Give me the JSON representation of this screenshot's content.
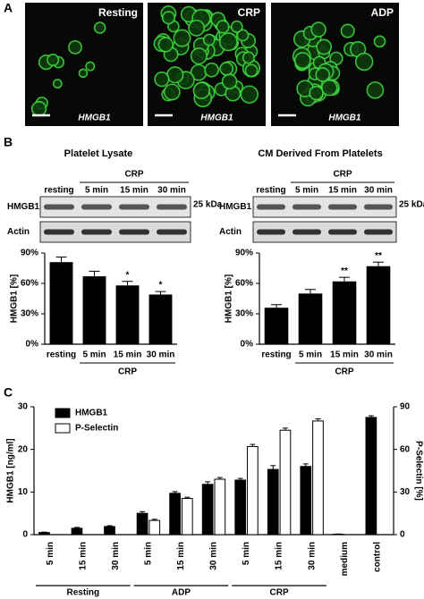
{
  "panel_labels": [
    "A",
    "B",
    "C"
  ],
  "panel_a": {
    "images": [
      {
        "label": "Resting",
        "stain": "HMGB1"
      },
      {
        "label": "CRP",
        "stain": "HMGB1"
      },
      {
        "label": "ADP",
        "stain": "HMGB1"
      }
    ]
  },
  "blots": [
    {
      "lanes": [
        "resting",
        "5 min",
        "15 min",
        "30 min"
      ],
      "group": "CRP",
      "rows": [
        "HMGB1",
        "Actin"
      ],
      "marker": "25 kDa"
    },
    {
      "lanes": [
        "resting",
        "5 min",
        "15 min",
        "30 min"
      ],
      "group": "CRP",
      "rows": [
        "HMGB1",
        "Actin"
      ],
      "marker": "25 kDa"
    }
  ],
  "chart_data": [
    {
      "type": "bar",
      "title": "Platelet Lysate",
      "ylabel": "HMGB1 [%]",
      "categories": [
        "resting",
        "5 min",
        "15 min",
        "30 min"
      ],
      "group_label": "CRP",
      "values": [
        81,
        67,
        58,
        49
      ],
      "errors": [
        5,
        5,
        4,
        3
      ],
      "significance": [
        null,
        null,
        "*",
        "*"
      ],
      "color": "#000000",
      "ylim": [
        0,
        90
      ],
      "yticks": [
        {
          "value": 0,
          "label": "0%"
        },
        {
          "value": 30,
          "label": "30%"
        },
        {
          "value": 60,
          "label": "60%"
        },
        {
          "value": 90,
          "label": "90%"
        }
      ]
    },
    {
      "type": "bar",
      "title": "CM Derived From Platelets",
      "ylabel": "HMGB1 [%]",
      "categories": [
        "resting",
        "5 min",
        "15 min",
        "30 min"
      ],
      "group_label": "CRP",
      "values": [
        36,
        50,
        62,
        77
      ],
      "errors": [
        3,
        4,
        4,
        4
      ],
      "significance": [
        null,
        null,
        "**",
        "**"
      ],
      "color": "#000000",
      "ylim": [
        0,
        90
      ],
      "yticks": [
        {
          "value": 0,
          "label": "0%"
        },
        {
          "value": 30,
          "label": "30%"
        },
        {
          "value": 60,
          "label": "60%"
        },
        {
          "value": 90,
          "label": "90%"
        }
      ]
    },
    {
      "type": "grouped-bar",
      "ylabel": "HMGB1 [ng/ml]",
      "y2label": "P-Selectin [%]",
      "categories": [
        "5 min",
        "15 min",
        "30 min",
        "5 min",
        "15 min",
        "30 min",
        "5 min",
        "15 min",
        "30 min",
        "medium",
        "control"
      ],
      "groups": [
        "Resting",
        "ADP",
        "CRP"
      ],
      "series": [
        {
          "name": "HMGB1",
          "color": "#000000",
          "values": [
            0.5,
            1.5,
            1.9,
            5,
            9.7,
            11.8,
            12.8,
            15.3,
            16,
            0.1,
            27.5
          ],
          "errors": [
            0.1,
            0.2,
            0.2,
            0.4,
            0.4,
            0.6,
            0.4,
            0.9,
            0.6,
            0.05,
            0.4
          ]
        },
        {
          "name": "P-Selectin",
          "color": "#ffffff",
          "axis": "y2",
          "values": [
            null,
            null,
            null,
            10,
            25.5,
            39,
            62,
            73.5,
            80,
            null,
            null
          ],
          "errors": [
            null,
            null,
            null,
            0.8,
            0.8,
            1.2,
            1.5,
            1.5,
            1.5,
            null,
            null
          ]
        }
      ],
      "ylim": [
        0,
        30
      ],
      "yticks": [
        0,
        10,
        20,
        30
      ],
      "y2lim": [
        0,
        90
      ],
      "y2ticks": [
        0,
        30,
        60,
        90
      ]
    }
  ]
}
